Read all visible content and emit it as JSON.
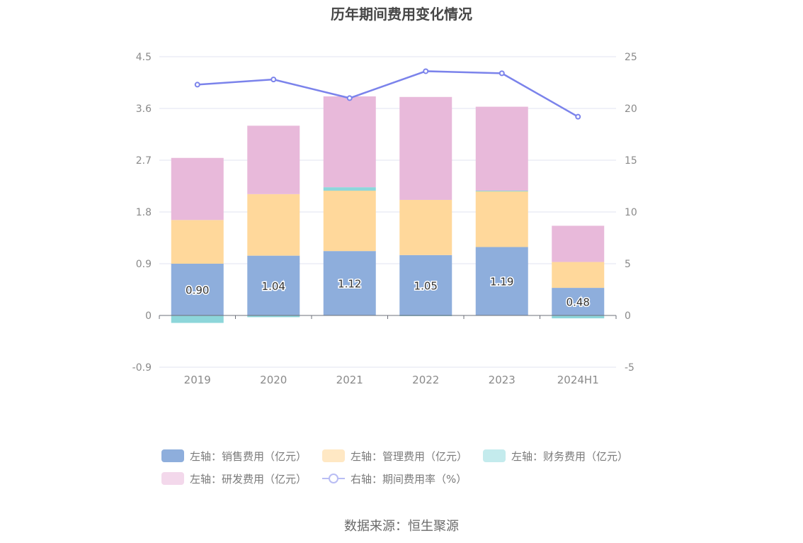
{
  "title": "历年期间费用变化情况",
  "source": "数据来源：恒生聚源",
  "chart_data": {
    "type": "bar",
    "stacked": true,
    "categories": [
      "2019",
      "2020",
      "2021",
      "2022",
      "2023",
      "2024H1"
    ],
    "y_left": {
      "min": -0.9,
      "max": 4.5,
      "ticks": [
        -0.9,
        0,
        0.9,
        1.8,
        2.7,
        3.6,
        4.5
      ]
    },
    "y_right": {
      "min": -5,
      "max": 25,
      "ticks": [
        -5,
        0,
        5,
        10,
        15,
        20,
        25
      ]
    },
    "grid": true,
    "legend_position": "bottom",
    "series": [
      {
        "name": "左轴：销售费用（亿元）",
        "type": "bar",
        "axis": "left",
        "color": "#8eaedc",
        "values": [
          0.9,
          1.04,
          1.12,
          1.05,
          1.19,
          0.48
        ],
        "labels": [
          "0.90",
          "1.04",
          "1.12",
          "1.05",
          "1.19",
          "0.48"
        ]
      },
      {
        "name": "左轴：管理费用（亿元）",
        "type": "bar",
        "axis": "left",
        "color": "#ffd89b",
        "values": [
          0.76,
          1.07,
          1.05,
          0.96,
          0.97,
          0.45
        ]
      },
      {
        "name": "左轴：财务费用（亿元）",
        "type": "bar",
        "axis": "left",
        "color": "#8dd6da",
        "values": [
          -0.13,
          -0.03,
          0.06,
          -0.01,
          0.01,
          -0.05
        ]
      },
      {
        "name": "左轴：研发费用（亿元）",
        "type": "bar",
        "axis": "left",
        "color": "#e8b9da",
        "values": [
          1.08,
          1.19,
          1.58,
          1.79,
          1.46,
          0.63
        ]
      },
      {
        "name": "右轴：期间费用率（%）",
        "type": "line",
        "axis": "right",
        "color": "#7b83eb",
        "values": [
          22.3,
          22.8,
          21.0,
          23.6,
          23.4,
          19.2
        ]
      }
    ]
  },
  "legend": {
    "row1": [
      {
        "label": "左轴：销售费用（亿元）",
        "color": "#8eaedc",
        "kind": "bar"
      },
      {
        "label": "左轴：管理费用（亿元）",
        "color": "#ffe8c4",
        "kind": "bar"
      },
      {
        "label": "左轴：财务费用（亿元）",
        "color": "#c4ebed",
        "kind": "bar"
      }
    ],
    "row2": [
      {
        "label": "左轴：研发费用（亿元）",
        "color": "#f3d8eb",
        "kind": "bar"
      },
      {
        "label": "右轴：期间费用率（%）",
        "color": "#b9bdf4",
        "kind": "line"
      }
    ]
  }
}
